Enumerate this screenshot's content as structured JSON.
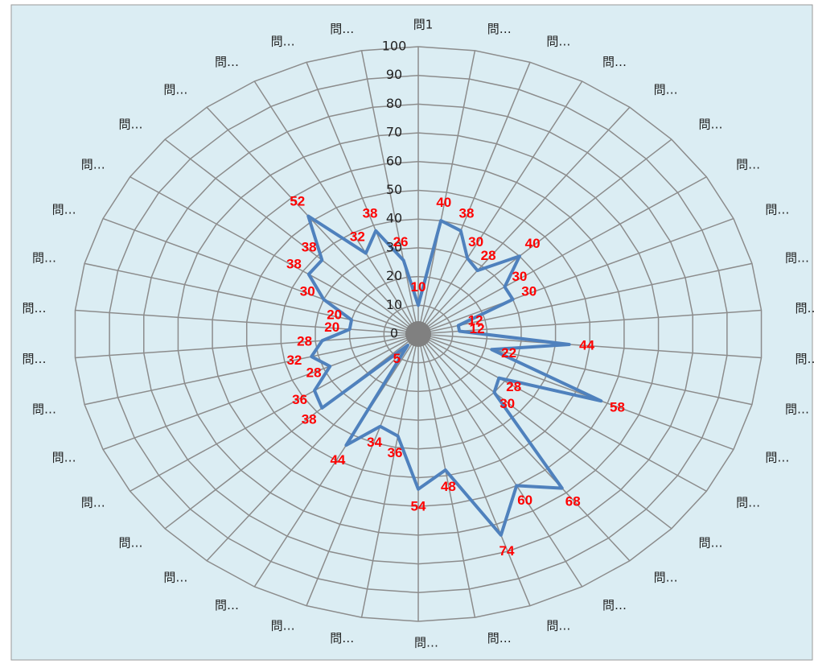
{
  "chart_data": {
    "type": "radar",
    "categories": [
      "問1",
      "問…",
      "問…",
      "問…",
      "問…",
      "問…",
      "問…",
      "問…",
      "問…",
      "問…",
      "問…",
      "問…",
      "問…",
      "問…",
      "問…",
      "問…",
      "問…",
      "問…",
      "問…",
      "問…",
      "問…",
      "問…",
      "問…",
      "問…",
      "問…",
      "問…",
      "問…",
      "問…",
      "問…",
      "問…",
      "問…",
      "問…",
      "問…",
      "問…",
      "問…",
      "問…",
      "問…",
      "問…"
    ],
    "values": [
      10,
      40,
      38,
      30,
      28,
      40,
      30,
      30,
      12,
      12,
      44,
      22,
      58,
      28,
      30,
      68,
      60,
      74,
      48,
      54,
      36,
      34,
      44,
      5,
      38,
      36,
      28,
      32,
      28,
      20,
      20,
      30,
      38,
      38,
      52,
      32,
      38,
      26
    ],
    "color": "#4f81bd",
    "label_color": "#ff0000",
    "rlim": [
      0,
      100
    ],
    "rticks": [
      0,
      10,
      20,
      30,
      40,
      50,
      60,
      70,
      80,
      90,
      100
    ],
    "grid": true
  }
}
